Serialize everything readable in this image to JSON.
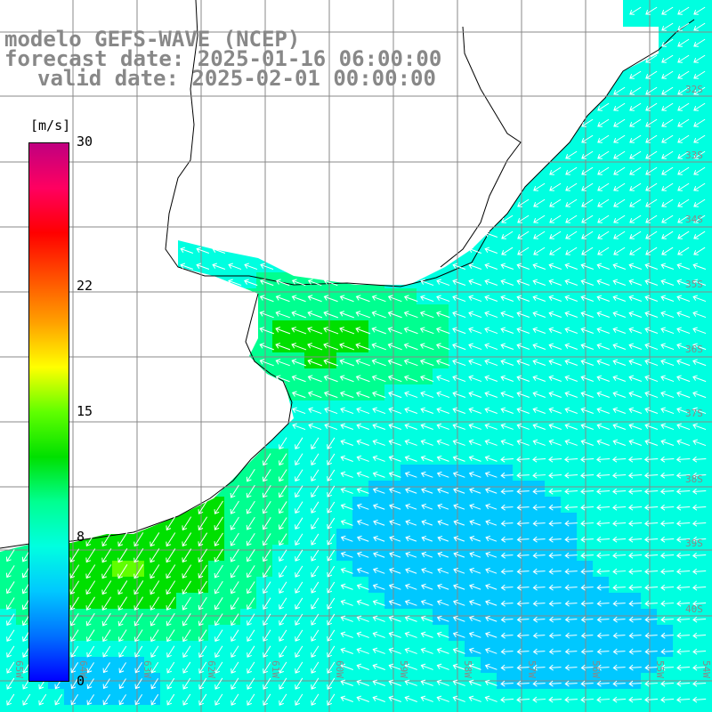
{
  "title": {
    "line1": "modelo GEFS-WAVE (NCEP)",
    "line2": "forecast date: 2025-01-16 06:00:00",
    "line3": "valid date: 2025-02-01 00:00:00"
  },
  "colorbar": {
    "unit": "[m/s]",
    "ticks": [
      {
        "value": 30,
        "label": "30"
      },
      {
        "value": 22,
        "label": "22"
      },
      {
        "value": 15,
        "label": "15"
      },
      {
        "value": 8,
        "label": "8"
      },
      {
        "value": 0,
        "label": "0"
      }
    ],
    "colors": [
      "#0000ff",
      "#0070ff",
      "#00c8ff",
      "#00ffe0",
      "#00ff90",
      "#00e000",
      "#60ff00",
      "#ffff00",
      "#ffa000",
      "#ff5000",
      "#ff0000",
      "#ff0060",
      "#c00080"
    ]
  },
  "axes": {
    "lat_labels": [
      "32S",
      "33S",
      "34S",
      "35S",
      "36S",
      "37S",
      "38S",
      "39S",
      "40S"
    ],
    "lon_labels": [
      "65W",
      "64W",
      "63W",
      "62W",
      "61W",
      "60W",
      "59W",
      "58W",
      "57W",
      "56W",
      "55W",
      "54W"
    ]
  },
  "colors": {
    "land": "#ffffff",
    "coast": "#000000",
    "grid": "#888888",
    "arrow": "#ffffff"
  }
}
